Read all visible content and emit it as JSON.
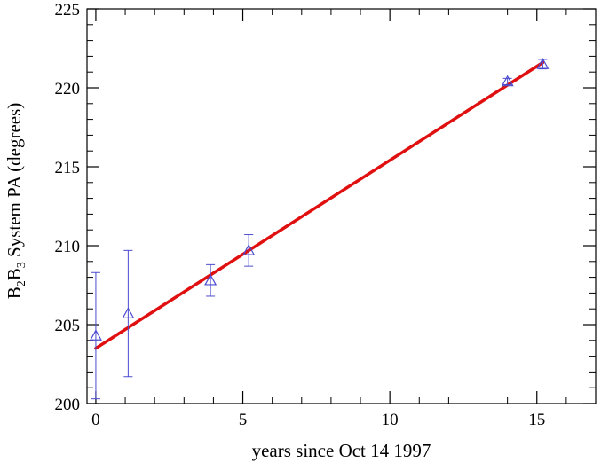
{
  "chart_data": {
    "type": "scatter",
    "title": "",
    "xlabel": "years since Oct 14 1997",
    "ylabel": {
      "prefix": "B",
      "sub1": "2",
      "middle": "B",
      "sub2": "3",
      "suffix": " System PA (degrees)"
    },
    "xlim": [
      -0.3,
      17
    ],
    "ylim": [
      200,
      225
    ],
    "x_ticks": [
      0,
      5,
      10,
      15
    ],
    "y_ticks": [
      200,
      205,
      210,
      215,
      220,
      225
    ],
    "x_minor_step": 1,
    "y_minor_step": 1,
    "grid": false,
    "series": [
      {
        "marker": "triangle",
        "color": "#4b4bd0",
        "points": [
          {
            "x": 0.0,
            "y": 204.3,
            "yerr_low": 200.3,
            "yerr_high": 208.3
          },
          {
            "x": 1.1,
            "y": 205.7,
            "yerr_low": 201.7,
            "yerr_high": 209.7
          },
          {
            "x": 3.9,
            "y": 207.8,
            "yerr_low": 206.8,
            "yerr_high": 208.8
          },
          {
            "x": 5.2,
            "y": 209.7,
            "yerr_low": 208.7,
            "yerr_high": 210.7
          },
          {
            "x": 14.0,
            "y": 220.4,
            "yerr_low": 220.2,
            "yerr_high": 220.6
          },
          {
            "x": 15.2,
            "y": 221.5,
            "yerr_low": 221.2,
            "yerr_high": 221.8
          }
        ]
      }
    ],
    "fit_line": {
      "color": "#e01010",
      "x": [
        0.0,
        15.2
      ],
      "y": [
        203.5,
        221.6
      ]
    }
  }
}
